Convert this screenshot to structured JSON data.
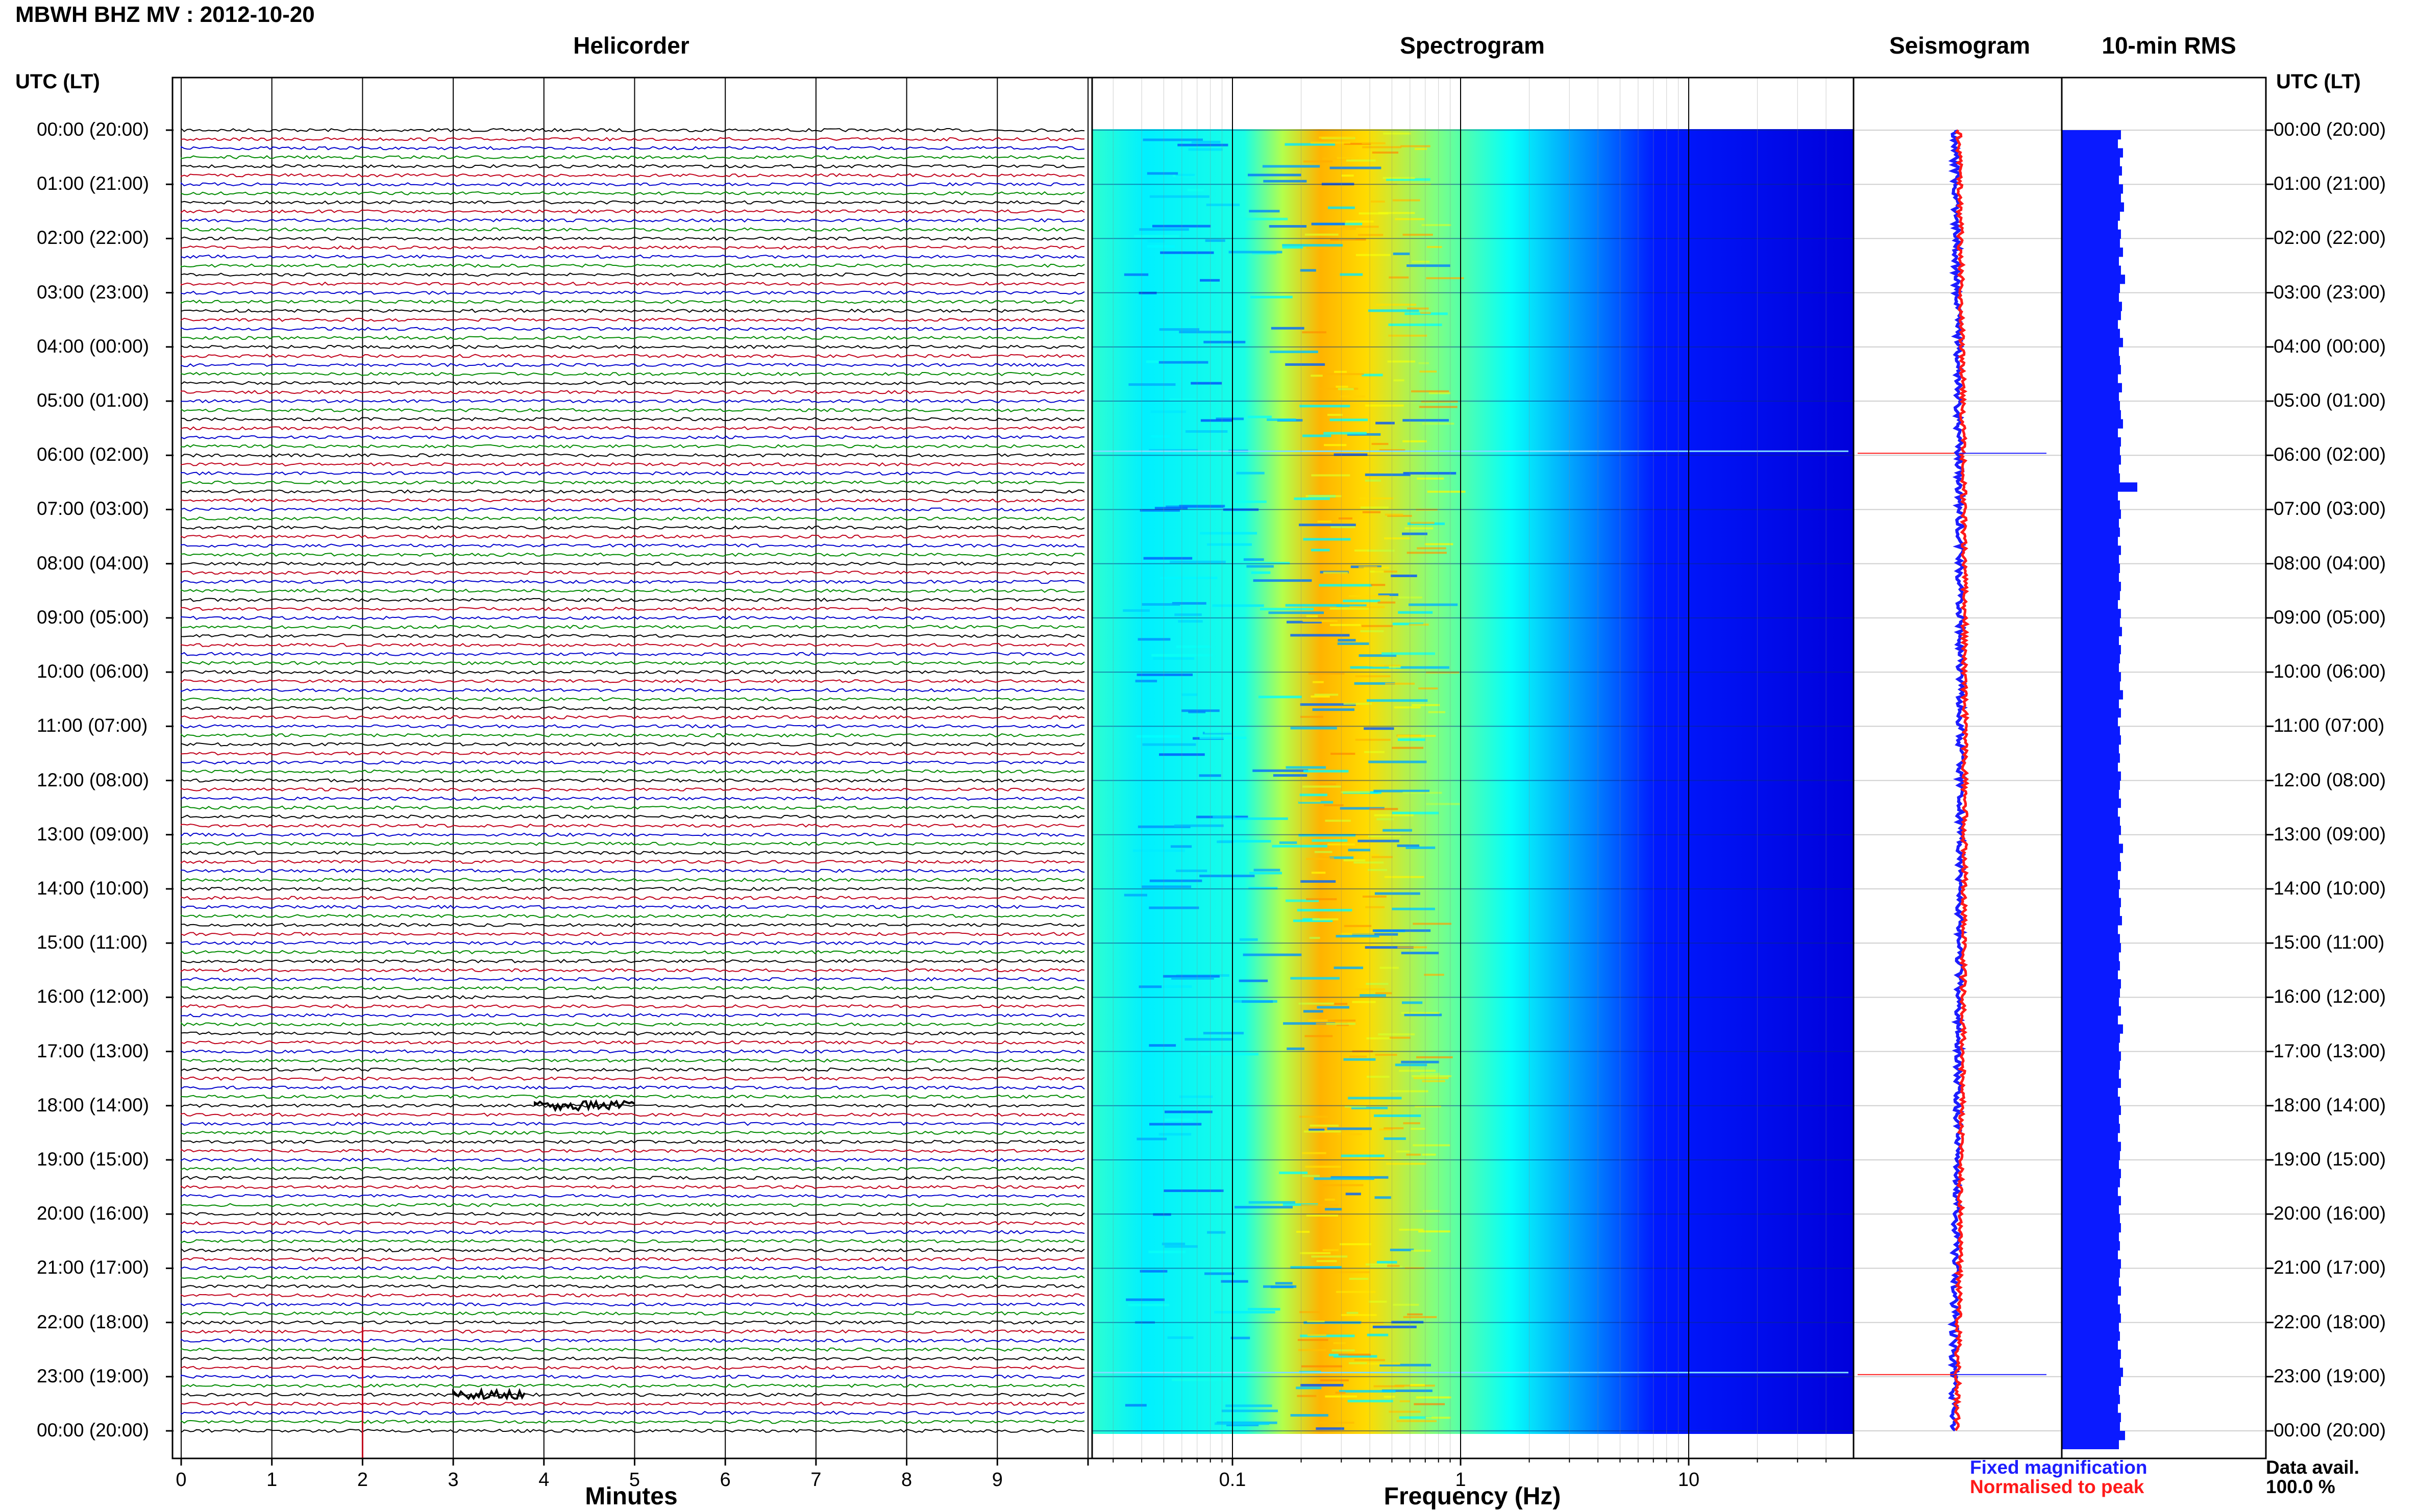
{
  "header": {
    "title": "MBWH BHZ MV : 2012-10-20",
    "utc_label_left": "UTC (LT)",
    "utc_label_right": "UTC (LT)"
  },
  "sections": {
    "helicorder": "Helicorder",
    "spectrogram": "Spectrogram",
    "seismogram": "Seismogram",
    "rms": "10-min RMS"
  },
  "footer": {
    "helicorder_xlabel": "Minutes",
    "spectrogram_xlabel": "Frequency (Hz)",
    "legend_fixed": "Fixed magnification",
    "legend_normalised": "Normalised to peak",
    "data_avail_label": "Data avail.",
    "data_avail_value": "100.0 %"
  },
  "colors": {
    "trace_black": "#000000",
    "trace_red": "#c0001a",
    "trace_blue": "#0000cc",
    "trace_green": "#008a00",
    "fixed": "#1d1dff",
    "normalised": "#ff1a1a",
    "rms_bar": "#0a1aff"
  },
  "time_labels": [
    "00:00 (20:00)",
    "01:00 (21:00)",
    "02:00 (22:00)",
    "03:00 (23:00)",
    "04:00 (00:00)",
    "05:00 (01:00)",
    "06:00 (02:00)",
    "07:00 (03:00)",
    "08:00 (04:00)",
    "09:00 (05:00)",
    "10:00 (06:00)",
    "11:00 (07:00)",
    "12:00 (08:00)",
    "13:00 (09:00)",
    "14:00 (10:00)",
    "15:00 (11:00)",
    "16:00 (12:00)",
    "17:00 (13:00)",
    "18:00 (14:00)",
    "19:00 (15:00)",
    "20:00 (16:00)",
    "21:00 (17:00)",
    "22:00 (18:00)",
    "23:00 (19:00)",
    "00:00 (20:00)"
  ],
  "chart_data": [
    {
      "type": "line",
      "title": "Helicorder",
      "xlabel": "Minutes",
      "x_ticks": [
        "0",
        "1",
        "2",
        "3",
        "4",
        "5",
        "6",
        "7",
        "8",
        "9"
      ],
      "xlim": [
        0,
        10
      ],
      "rows_per_hour": 6,
      "hours": 24,
      "trace_colors": [
        "black",
        "red",
        "blue",
        "green"
      ],
      "events": [
        {
          "time_utc": "18:00",
          "minute_start": 3.9,
          "minute_end": 5.0,
          "color": "black"
        },
        {
          "time_utc": "22:50",
          "minute_start": 2.0,
          "minute_end": 2.0,
          "color": "red"
        },
        {
          "time_utc": "23:20",
          "minute_start": 3.0,
          "minute_end": 3.8,
          "color": "black"
        }
      ]
    },
    {
      "type": "heatmap",
      "title": "Spectrogram",
      "xlabel": "Frequency (Hz)",
      "x_scale": "log",
      "x_ticks": [
        "0.1",
        "1",
        "10"
      ],
      "xlim": [
        0.02,
        50
      ],
      "colormap": "jet"
    },
    {
      "type": "line",
      "title": "Seismogram",
      "series": [
        {
          "name": "Fixed magnification"
        },
        {
          "name": "Normalised to peak"
        }
      ],
      "spikes_utc": [
        "06:00",
        "23:00"
      ]
    },
    {
      "type": "bar",
      "title": "10-min RMS",
      "orientation": "horizontal",
      "relative_values": [
        0.58,
        0.55,
        0.6,
        0.57,
        0.59,
        0.56,
        0.6,
        0.58,
        0.61,
        0.57,
        0.55,
        0.58,
        0.57,
        0.6,
        0.56,
        0.58,
        0.62,
        0.57,
        0.56,
        0.59,
        0.58,
        0.55,
        0.57,
        0.6,
        0.56,
        0.57,
        0.58,
        0.55,
        0.59,
        0.56,
        0.57,
        0.58,
        0.6,
        0.55,
        0.58,
        0.57,
        0.58,
        0.56,
        0.57,
        0.74,
        0.55,
        0.57,
        0.58,
        0.56,
        0.57,
        0.55,
        0.58,
        0.56,
        0.57,
        0.56,
        0.58,
        0.57,
        0.55,
        0.58,
        0.57,
        0.59,
        0.56,
        0.58,
        0.57,
        0.56,
        0.58,
        0.57,
        0.6,
        0.56,
        0.58,
        0.55,
        0.57,
        0.58,
        0.56,
        0.57,
        0.55,
        0.58,
        0.57,
        0.56,
        0.58,
        0.55,
        0.57,
        0.58,
        0.56,
        0.6,
        0.57,
        0.58,
        0.55,
        0.57,
        0.56,
        0.58,
        0.57,
        0.59,
        0.55,
        0.57,
        0.58,
        0.56,
        0.57,
        0.55,
        0.58,
        0.57,
        0.56,
        0.58,
        0.55,
        0.6,
        0.57,
        0.56,
        0.58,
        0.57,
        0.56,
        0.58,
        0.55,
        0.57,
        0.58,
        0.56,
        0.57,
        0.55,
        0.58,
        0.57,
        0.56,
        0.58,
        0.57,
        0.55,
        0.58,
        0.56,
        0.57,
        0.58,
        0.56,
        0.57,
        0.55,
        0.58,
        0.57,
        0.56,
        0.58,
        0.55,
        0.57,
        0.58,
        0.56,
        0.57,
        0.55,
        0.58,
        0.57,
        0.6,
        0.58,
        0.56,
        0.57,
        0.55,
        0.58,
        0.57
      ],
      "extra_final_rows": [
        0.62,
        0.56
      ]
    }
  ]
}
